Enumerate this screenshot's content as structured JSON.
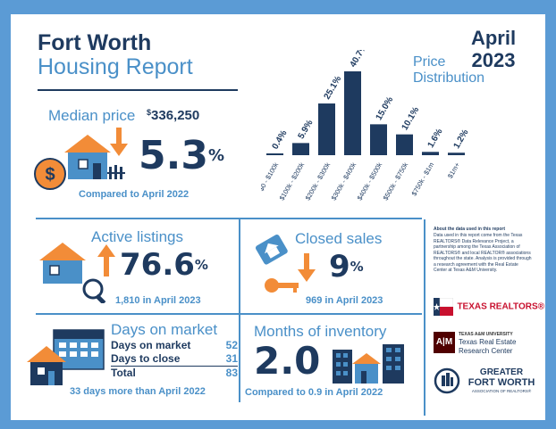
{
  "header": {
    "city": "Fort Worth",
    "subtitle": "Housing Report",
    "month": "April",
    "year": "2023"
  },
  "median": {
    "label": "Median price",
    "currency": "$",
    "value": "336,250",
    "change": "5.3",
    "unit": "%",
    "comparison": "Compared to April 2022",
    "direction": "down"
  },
  "active": {
    "title": "Active listings",
    "change": "76.6",
    "unit": "%",
    "note": "1,810 in April 2023",
    "direction": "up"
  },
  "closed": {
    "title": "Closed sales",
    "change": "9",
    "unit": "%",
    "note": "969 in April 2023",
    "direction": "down"
  },
  "dom": {
    "title": "Days on market",
    "rows": [
      {
        "label": "Days on market",
        "value": "52"
      },
      {
        "label": "Days to close",
        "value": "31"
      }
    ],
    "total_label": "Total",
    "total_value": "83",
    "note": "33 days more than April 2022"
  },
  "inventory": {
    "title": "Months of inventory",
    "value": "2.0",
    "note": "Compared to 0.9 in April 2022"
  },
  "about": {
    "heading": "About the data used in this report",
    "text": "Data used in this report come from the Texas REALTORS® Data Relevance Project, a partnership among the Texas Association of REALTORS® and local REALTOR® associations throughout the state. Analysis is provided through a research agreement with the Real Estate Center at Texas A&M University."
  },
  "logos": {
    "tr_text": "TEXAS REALTORS®",
    "tamu_line1": "TEXAS A&M UNIVERSITY",
    "tamu_line2": "Texas Real Estate",
    "tamu_line3": "Research Center",
    "gfw_line1": "GREATER",
    "gfw_line2": "FORT WORTH",
    "gfw_line3": "ASSOCIATION OF REALTORS®"
  },
  "colors": {
    "navy": "#1e3a5f",
    "blue": "#4a90c8",
    "orange": "#f28c38",
    "border": "#5b9bd5"
  },
  "chart_data": {
    "type": "bar",
    "title": "Price Distribution",
    "categories": [
      "$0 - $100k",
      "$100k - $200k",
      "$200k - $300k",
      "$300k - $400k",
      "$400k - $500k",
      "$500k - $750k",
      "$750k - $1m",
      "$1m+"
    ],
    "values": [
      0.4,
      5.9,
      25.1,
      40.7,
      15.0,
      10.1,
      1.6,
      1.2
    ],
    "labels": [
      "0.4%",
      "5.9%",
      "25.1%",
      "40.7%",
      "15.0%",
      "10.1%",
      "1.6%",
      "1.2%"
    ],
    "ylim": [
      0,
      40.7
    ]
  }
}
